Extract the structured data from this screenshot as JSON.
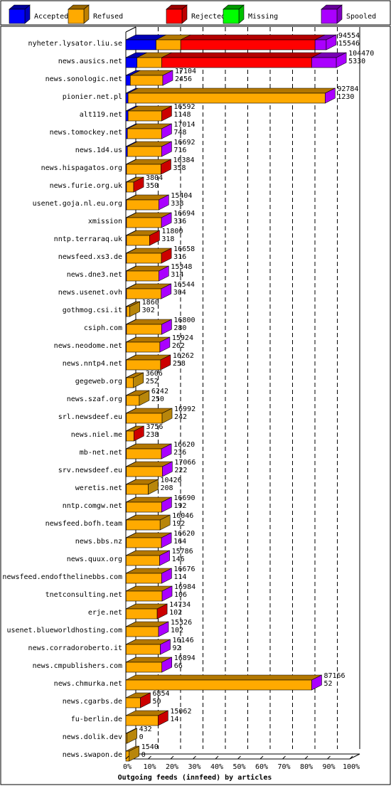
{
  "chart_data": {
    "type": "bar",
    "orientation": "horizontal",
    "stacked": true,
    "xlabel": "Outgoing feeds (innfeed) by articles",
    "x_ticks": [
      "0%",
      "10%",
      "20%",
      "30%",
      "40%",
      "50%",
      "60%",
      "70%",
      "80%",
      "90%",
      "100%"
    ],
    "xlim": [
      0,
      100
    ],
    "legend_position": "top",
    "series": [
      {
        "name": "Accepted",
        "color": "#0000ff"
      },
      {
        "name": "Refused",
        "color": "#ffaa00"
      },
      {
        "name": "Rejected",
        "color": "#ff0000"
      },
      {
        "name": "Missing",
        "color": "#00ff00"
      },
      {
        "name": "Spooled",
        "color": "#aa00ff"
      }
    ],
    "rows": [
      {
        "name": "nyheter.lysator.liu.se",
        "offered": "94554",
        "accepted": "15546",
        "segments": [
          13.5,
          11,
          60,
          0,
          5
        ]
      },
      {
        "name": "news.ausics.net",
        "offered": "104470",
        "accepted": "5330",
        "segments": [
          5,
          11,
          67,
          0,
          11
        ]
      },
      {
        "name": "news.sonologic.net",
        "offered": "17104",
        "accepted": "2456",
        "segments": [
          2,
          14.5,
          0,
          0,
          0
        ]
      },
      {
        "name": "pionier.net.pl",
        "offered": "92784",
        "accepted": "1230",
        "segments": [
          1,
          88,
          0,
          0,
          0
        ]
      },
      {
        "name": "alt119.net",
        "offered": "16592",
        "accepted": "1148",
        "segments": [
          1,
          15,
          0,
          0,
          0
        ]
      },
      {
        "name": "news.tomockey.net",
        "offered": "17014",
        "accepted": "748",
        "segments": [
          0.7,
          15.3,
          0,
          0,
          0
        ]
      },
      {
        "name": "news.1d4.us",
        "offered": "16692",
        "accepted": "716",
        "segments": [
          0.7,
          15.3,
          0,
          0,
          0
        ]
      },
      {
        "name": "news.hispagatos.org",
        "offered": "16384",
        "accepted": "358",
        "segments": [
          0.3,
          15.4,
          0,
          0,
          0
        ]
      },
      {
        "name": "news.furie.org.uk",
        "offered": "3804",
        "accepted": "350",
        "segments": [
          0.3,
          3.2,
          0,
          0,
          0
        ]
      },
      {
        "name": "usenet.goja.nl.eu.org",
        "offered": "15404",
        "accepted": "338",
        "segments": [
          0.3,
          14.4,
          0,
          0,
          0
        ]
      },
      {
        "name": "xmission",
        "offered": "16694",
        "accepted": "336",
        "segments": [
          0.3,
          15.6,
          0,
          0,
          0
        ]
      },
      {
        "name": "nntp.terraraq.uk",
        "offered": "11800",
        "accepted": "318",
        "segments": [
          0.3,
          10.3,
          0,
          0,
          0
        ]
      },
      {
        "name": "newsfeed.xs3.de",
        "offered": "16658",
        "accepted": "316",
        "segments": [
          0.3,
          15.6,
          0,
          0,
          0
        ]
      },
      {
        "name": "news.dne3.net",
        "offered": "15348",
        "accepted": "314",
        "segments": [
          0.3,
          14.4,
          0,
          0,
          0
        ]
      },
      {
        "name": "news.usenet.ovh",
        "offered": "16544",
        "accepted": "304",
        "segments": [
          0.3,
          15.5,
          0,
          0,
          0
        ]
      },
      {
        "name": "gothmog.csi.it",
        "offered": "1860",
        "accepted": "302",
        "segments": [
          0.3,
          1.5,
          0,
          0,
          0
        ]
      },
      {
        "name": "csiph.com",
        "offered": "16800",
        "accepted": "280",
        "segments": [
          0.3,
          15.7,
          0,
          0,
          0
        ]
      },
      {
        "name": "news.neodome.net",
        "offered": "15924",
        "accepted": "262",
        "segments": [
          0.2,
          15,
          0,
          0,
          0
        ]
      },
      {
        "name": "news.nntp4.net",
        "offered": "16262",
        "accepted": "258",
        "segments": [
          0.2,
          15.3,
          0,
          0,
          0
        ]
      },
      {
        "name": "gegeweb.org",
        "offered": "3606",
        "accepted": "252",
        "segments": [
          0.2,
          3.2,
          0,
          0,
          0
        ]
      },
      {
        "name": "news.szaf.org",
        "offered": "6242",
        "accepted": "250",
        "segments": [
          0.2,
          5.8,
          0,
          0,
          0
        ]
      },
      {
        "name": "srl.newsdeef.eu",
        "offered": "16992",
        "accepted": "242",
        "segments": [
          0.2,
          16,
          0,
          0,
          0
        ]
      },
      {
        "name": "news.niel.me",
        "offered": "3756",
        "accepted": "238",
        "segments": [
          0.2,
          3.4,
          0,
          0,
          0
        ]
      },
      {
        "name": "mb-net.net",
        "offered": "16620",
        "accepted": "236",
        "segments": [
          0.2,
          15.7,
          0,
          0,
          0
        ]
      },
      {
        "name": "srv.newsdeef.eu",
        "offered": "17066",
        "accepted": "222",
        "segments": [
          0.2,
          16.1,
          0,
          0,
          0
        ]
      },
      {
        "name": "weretis.net",
        "offered": "10426",
        "accepted": "208",
        "segments": [
          0.2,
          9.8,
          0,
          0,
          0
        ]
      },
      {
        "name": "nntp.comgw.net",
        "offered": "16690",
        "accepted": "192",
        "segments": [
          0.2,
          15.8,
          0,
          0,
          0
        ]
      },
      {
        "name": "newsfeed.bofh.team",
        "offered": "16046",
        "accepted": "192",
        "segments": [
          0.2,
          15.1,
          0,
          0,
          0
        ]
      },
      {
        "name": "news.bbs.nz",
        "offered": "16620",
        "accepted": "164",
        "segments": [
          0.2,
          15.7,
          0,
          0,
          0
        ]
      },
      {
        "name": "news.quux.org",
        "offered": "15786",
        "accepted": "146",
        "segments": [
          0.1,
          15,
          0,
          0,
          0
        ]
      },
      {
        "name": "newsfeed.endofthelinebbs.com",
        "offered": "16676",
        "accepted": "114",
        "segments": [
          0.1,
          15.9,
          0,
          0,
          0
        ]
      },
      {
        "name": "tnetconsulting.net",
        "offered": "16984",
        "accepted": "106",
        "segments": [
          0.1,
          16.1,
          0,
          0,
          0
        ]
      },
      {
        "name": "erje.net",
        "offered": "14734",
        "accepted": "102",
        "segments": [
          0.1,
          13.9,
          0,
          0,
          0
        ]
      },
      {
        "name": "usenet.blueworldhosting.com",
        "offered": "15326",
        "accepted": "102",
        "segments": [
          0.1,
          14.5,
          0,
          0,
          0
        ]
      },
      {
        "name": "news.corradoroberto.it",
        "offered": "16146",
        "accepted": "92",
        "segments": [
          0.1,
          15.3,
          0,
          0,
          0
        ]
      },
      {
        "name": "news.cmpublishers.com",
        "offered": "16894",
        "accepted": "66",
        "segments": [
          0.1,
          16,
          0,
          0,
          0
        ]
      },
      {
        "name": "news.chmurka.net",
        "offered": "87166",
        "accepted": "52",
        "segments": [
          0,
          83,
          0,
          0,
          0
        ]
      },
      {
        "name": "news.cgarbs.de",
        "offered": "6854",
        "accepted": "50",
        "segments": [
          0,
          6.5,
          0,
          0,
          0
        ]
      },
      {
        "name": "fu-berlin.de",
        "offered": "15062",
        "accepted": "14",
        "segments": [
          0,
          14.4,
          0,
          0,
          0
        ]
      },
      {
        "name": "news.dolik.dev",
        "offered": "432",
        "accepted": "0",
        "segments": [
          0,
          0.5,
          0,
          0,
          0
        ]
      },
      {
        "name": "news.swapon.de",
        "offered": "1540",
        "accepted": "0",
        "segments": [
          0,
          1.5,
          0,
          0,
          0
        ]
      }
    ],
    "cap_colors": [
      "#aa00ff",
      "#aa00ff",
      "#aa00ff",
      "#aa00ff",
      "#cc0000",
      "#aa00ff",
      "#aa00ff",
      "#cc0000",
      "#cc0000",
      "#aa00ff",
      "#aa00ff",
      "#cc0000",
      "#cc0000",
      "#aa00ff",
      "#aa00ff",
      "#b8860b",
      "#aa00ff",
      "#aa00ff",
      "#cc0000",
      "#b8860b",
      "#b8860b",
      "#b8860b",
      "#cc0000",
      "#aa00ff",
      "#aa00ff",
      "#b8860b",
      "#aa00ff",
      "#b8860b",
      "#aa00ff",
      "#aa00ff",
      "#aa00ff",
      "#aa00ff",
      "#cc0000",
      "#aa00ff",
      "#aa00ff",
      "#aa00ff",
      "#aa00ff",
      "#cc0000",
      "#cc0000",
      "#b8860b",
      "#b8860b"
    ]
  }
}
